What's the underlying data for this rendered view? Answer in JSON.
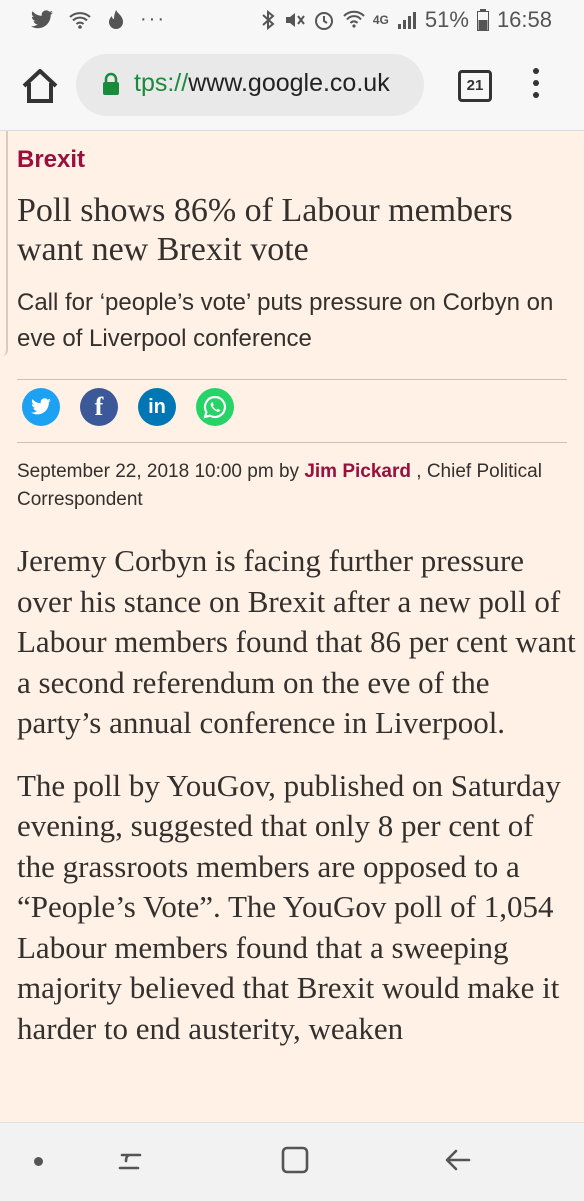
{
  "status_bar": {
    "battery": "51%",
    "time": "16:58",
    "network": "4G"
  },
  "browser": {
    "url_scheme": "tps://",
    "url_host": "www.google.co.uk",
    "tab_count": "21"
  },
  "article": {
    "section": "Brexit",
    "headline": "Poll shows 86% of Labour members want new Brexit vote",
    "standfirst": "Call for ‘people’s vote’ puts pressure on Corbyn on eve of Liverpool conference",
    "date": "September 22, 2018 10:00 pm by",
    "author": "Jim Pickard",
    "role": ", Chief Political Correspondent",
    "paragraphs": [
      "Jeremy Corbyn is facing further pressure over his stance on Brexit after a new poll of Labour members found that 86 per cent want a second referendum on the eve of the party’s annual conference in Liverpool.",
      "The poll by YouGov, published on Saturday evening, suggested that only 8 per cent of the grassroots members are opposed to a “People’s Vote”. The YouGov poll of 1,054 Labour members found that a sweeping majority believed that Brexit would make it harder to end austerity, weaken"
    ]
  },
  "share_icons": [
    "twitter-icon",
    "facebook-icon",
    "linkedin-icon",
    "whatsapp-icon"
  ],
  "colors": {
    "background": "#fff1e5",
    "accent": "#990f3d",
    "text": "#33302e"
  }
}
